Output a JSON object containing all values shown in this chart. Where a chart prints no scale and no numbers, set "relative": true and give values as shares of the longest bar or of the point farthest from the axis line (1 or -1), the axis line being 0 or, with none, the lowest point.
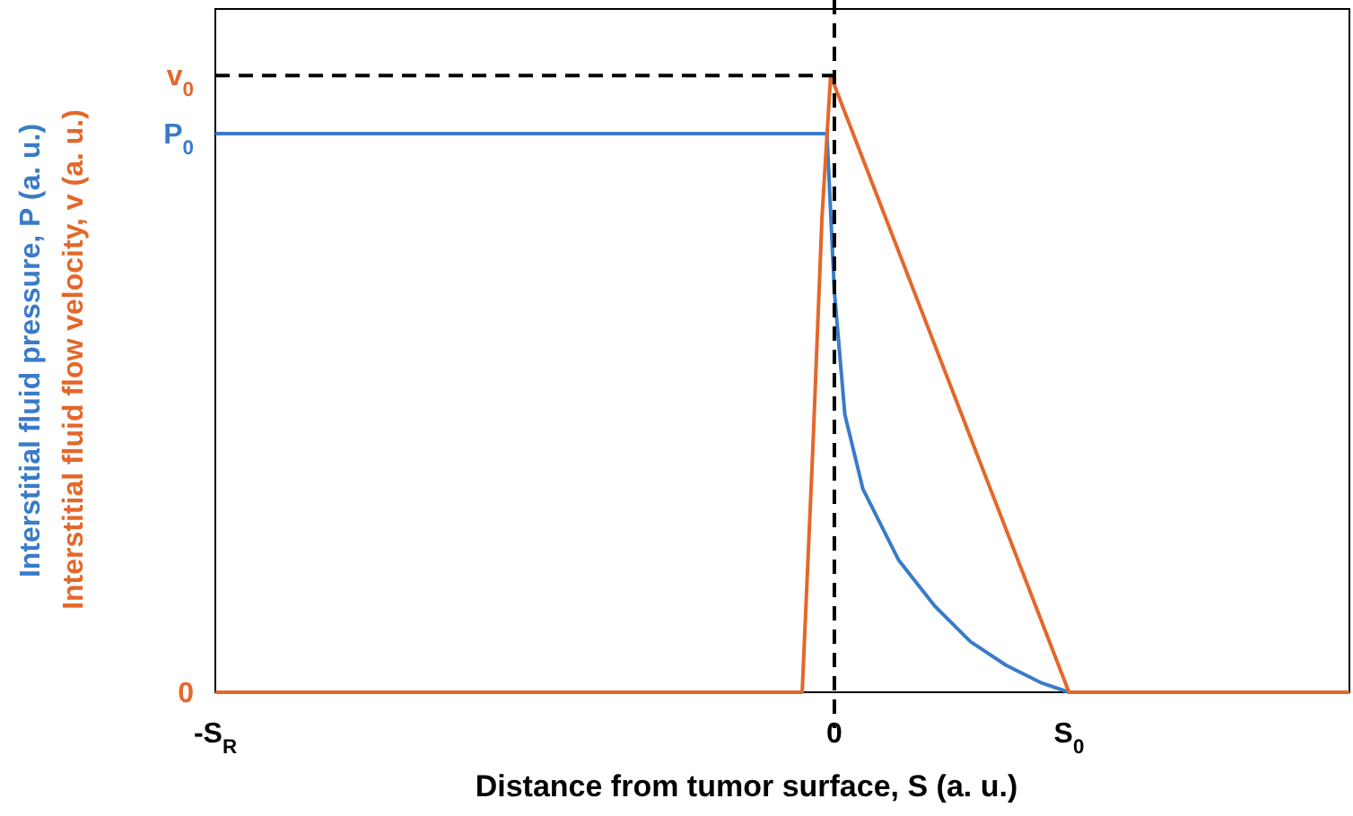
{
  "chart_data": {
    "type": "line",
    "xlabel": "Distance from tumor surface, S (a. u.)",
    "ylabel": "Interstitial fluid flow velocity, v (a. u.)",
    "xlim": [
      -1,
      0.832
    ],
    "xticks": [
      {
        "value": -1,
        "label": "-S$_{R}$"
      },
      0,
      {
        "value": 0.379,
        "label": "S$_{0}$"
      }
    ],
    "relative": true,
    "annotations": [
      "0",
      "P$_{0}$",
      "v$_{0}$",
      "Interstitial fluid pressure, P (a. u.)"
    ],
    "series": [
      {
        "color": "#3a7bc8",
        "x": [
          -1,
          -0.012,
          0,
          0.017,
          0.046,
          0.104,
          0.162,
          0.22,
          0.277,
          0.335,
          0.379,
          0.832
        ],
        "values": [
          0.906,
          0.906,
          0.65,
          0.45,
          0.33,
          0.214,
          0.14,
          0.082,
          0.044,
          0.015,
          0,
          0
        ]
      },
      {
        "color": "#e4672a",
        "x": [
          -1,
          -0.052,
          -0.035,
          -0.02,
          -0.006,
          0.379,
          0.832
        ],
        "values": [
          0,
          0,
          0.39,
          0.77,
          1,
          0,
          0
        ]
      }
    ],
    "ref_lines": [
      {
        "axis": "x",
        "value": 0,
        "color": "#000000",
        "line_style": "dashed"
      },
      {
        "axis": "y",
        "value": 1,
        "color": "#000000",
        "line_style": "dashed"
      }
    ],
    "marker": "none",
    "line_style": "solid"
  }
}
